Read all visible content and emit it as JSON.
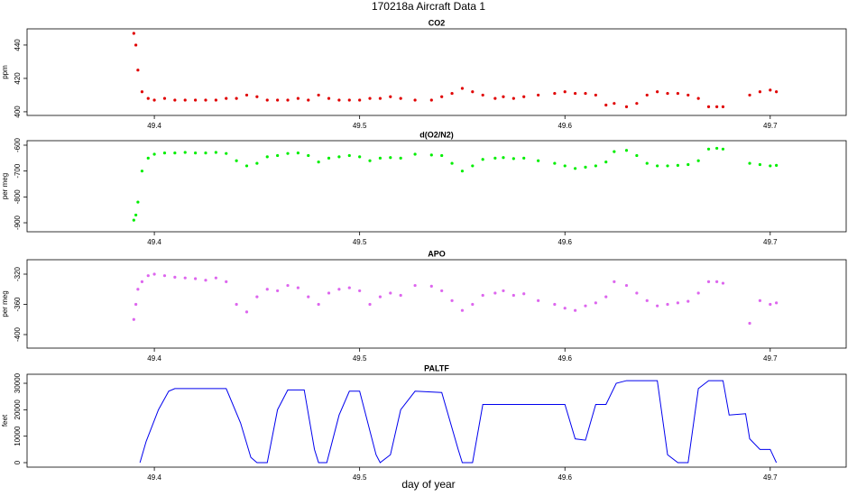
{
  "title": "170218a   Aircraft Data 1",
  "xlabel": "day of year",
  "chart_data": [
    {
      "type": "scatter",
      "title": "CO2",
      "ylabel": "ppm",
      "x": [
        49.39,
        49.391,
        49.392,
        49.394,
        49.397,
        49.4,
        49.405,
        49.41,
        49.415,
        49.42,
        49.425,
        49.43,
        49.435,
        49.44,
        49.445,
        49.45,
        49.455,
        49.46,
        49.465,
        49.47,
        49.475,
        49.48,
        49.485,
        49.49,
        49.495,
        49.5,
        49.505,
        49.51,
        49.515,
        49.52,
        49.527,
        49.535,
        49.54,
        49.545,
        49.55,
        49.555,
        49.56,
        49.566,
        49.57,
        49.575,
        49.58,
        49.587,
        49.595,
        49.6,
        49.605,
        49.61,
        49.615,
        49.62,
        49.624,
        49.63,
        49.635,
        49.64,
        49.645,
        49.65,
        49.655,
        49.66,
        49.665,
        49.67,
        49.674,
        49.677,
        49.69,
        49.695,
        49.7,
        49.703
      ],
      "series": [
        {
          "color": "#e00000",
          "values": [
            447,
            440,
            425,
            412,
            408,
            407,
            408,
            407,
            407,
            407,
            407,
            407,
            408,
            408,
            410,
            409,
            407,
            407,
            407,
            408,
            407,
            410,
            408,
            407,
            407,
            407,
            408,
            408,
            409,
            408,
            407,
            407,
            409,
            411,
            414,
            412,
            410,
            408,
            409,
            408,
            409,
            410,
            411,
            412,
            411,
            411,
            410,
            404,
            405,
            403,
            405,
            410,
            412,
            411,
            411,
            410,
            408,
            403,
            403,
            403,
            410,
            412,
            413,
            412
          ]
        }
      ],
      "xlim": [
        49.338,
        49.737
      ],
      "ylim": [
        397.8,
        449.7
      ],
      "xticks": [
        49.4,
        49.5,
        49.6,
        49.7
      ],
      "yticks": [
        400,
        420,
        440
      ]
    },
    {
      "type": "scatter",
      "title": "d(O2/N2)",
      "ylabel": "per meg",
      "x": [
        49.39,
        49.391,
        49.392,
        49.394,
        49.397,
        49.4,
        49.405,
        49.41,
        49.415,
        49.42,
        49.425,
        49.43,
        49.435,
        49.44,
        49.445,
        49.45,
        49.455,
        49.46,
        49.465,
        49.47,
        49.475,
        49.48,
        49.485,
        49.49,
        49.495,
        49.5,
        49.505,
        49.51,
        49.515,
        49.52,
        49.527,
        49.535,
        49.54,
        49.545,
        49.55,
        49.555,
        49.56,
        49.566,
        49.57,
        49.575,
        49.58,
        49.587,
        49.595,
        49.6,
        49.605,
        49.61,
        49.615,
        49.62,
        49.624,
        49.63,
        49.635,
        49.64,
        49.645,
        49.65,
        49.655,
        49.66,
        49.665,
        49.67,
        49.674,
        49.677,
        49.69,
        49.695,
        49.7,
        49.703
      ],
      "series": [
        {
          "color": "#00ee00",
          "values": [
            -890,
            -870,
            -820,
            -700,
            -650,
            -635,
            -630,
            -630,
            -628,
            -630,
            -630,
            -628,
            -632,
            -660,
            -680,
            -670,
            -645,
            -640,
            -632,
            -630,
            -640,
            -665,
            -650,
            -645,
            -640,
            -645,
            -660,
            -650,
            -648,
            -650,
            -635,
            -638,
            -640,
            -670,
            -700,
            -680,
            -655,
            -650,
            -648,
            -652,
            -650,
            -660,
            -670,
            -680,
            -690,
            -685,
            -680,
            -665,
            -625,
            -620,
            -640,
            -670,
            -680,
            -680,
            -678,
            -675,
            -660,
            -615,
            -612,
            -615,
            -670,
            -675,
            -680,
            -678
          ]
        }
      ],
      "xlim": [
        49.338,
        49.737
      ],
      "ylim": [
        -934.8,
        -582.6
      ],
      "xticks": [
        49.4,
        49.5,
        49.6,
        49.7
      ],
      "yticks": [
        -900,
        -800,
        -700,
        -600
      ]
    },
    {
      "type": "scatter",
      "title": "APO",
      "ylabel": "per meg",
      "x": [
        49.39,
        49.391,
        49.392,
        49.394,
        49.397,
        49.4,
        49.405,
        49.41,
        49.415,
        49.42,
        49.425,
        49.43,
        49.435,
        49.44,
        49.445,
        49.45,
        49.455,
        49.46,
        49.465,
        49.47,
        49.475,
        49.48,
        49.485,
        49.49,
        49.495,
        49.5,
        49.505,
        49.51,
        49.515,
        49.52,
        49.527,
        49.535,
        49.54,
        49.545,
        49.55,
        49.555,
        49.56,
        49.566,
        49.57,
        49.575,
        49.58,
        49.587,
        49.595,
        49.6,
        49.605,
        49.61,
        49.615,
        49.62,
        49.624,
        49.63,
        49.635,
        49.64,
        49.645,
        49.65,
        49.655,
        49.66,
        49.665,
        49.67,
        49.674,
        49.677,
        49.69,
        49.695,
        49.7,
        49.703
      ],
      "series": [
        {
          "color": "#dd66ee",
          "values": [
            -380,
            -360,
            -340,
            -330,
            -322,
            -320,
            -322,
            -324,
            -325,
            -326,
            -328,
            -325,
            -330,
            -360,
            -370,
            -350,
            -340,
            -342,
            -335,
            -338,
            -350,
            -360,
            -345,
            -340,
            -338,
            -342,
            -360,
            -350,
            -345,
            -348,
            -335,
            -336,
            -342,
            -355,
            -368,
            -360,
            -348,
            -345,
            -342,
            -348,
            -346,
            -355,
            -360,
            -365,
            -368,
            -362,
            -358,
            -350,
            -330,
            -335,
            -345,
            -355,
            -362,
            -360,
            -358,
            -356,
            -345,
            -330,
            -330,
            -332,
            -385,
            -355,
            -360,
            -358
          ]
        }
      ],
      "xlim": [
        49.338,
        49.737
      ],
      "ylim": [
        -417.9,
        -300.9
      ],
      "xticks": [
        49.4,
        49.5,
        49.6,
        49.7
      ],
      "yticks": [
        -400,
        -360,
        -320
      ]
    },
    {
      "type": "line",
      "title": "PALTF",
      "ylabel": "feet",
      "x": [
        49.393,
        49.396,
        49.398,
        49.402,
        49.407,
        49.41,
        49.435,
        49.442,
        49.447,
        49.45,
        49.455,
        49.46,
        49.465,
        49.473,
        49.478,
        49.48,
        49.484,
        49.49,
        49.495,
        49.5,
        49.508,
        49.51,
        49.515,
        49.52,
        49.527,
        49.54,
        49.548,
        49.55,
        49.555,
        49.56,
        49.6,
        49.605,
        49.61,
        49.615,
        49.62,
        49.625,
        49.63,
        49.645,
        49.65,
        49.655,
        49.66,
        49.665,
        49.67,
        49.677,
        49.68,
        49.688,
        49.69,
        49.695,
        49.7,
        49.703
      ],
      "series": [
        {
          "color": "#0000ee",
          "values": [
            0,
            8000,
            12000,
            20000,
            27000,
            28000,
            28000,
            15000,
            2000,
            0,
            0,
            20000,
            27500,
            27500,
            5000,
            0,
            0,
            18000,
            27000,
            27000,
            3000,
            0,
            3000,
            20000,
            27000,
            26500,
            5000,
            0,
            0,
            22000,
            22000,
            9000,
            8500,
            22000,
            22000,
            30000,
            31000,
            31000,
            3000,
            0,
            0,
            28000,
            31000,
            31000,
            18000,
            18500,
            9000,
            5000,
            5000,
            0
          ]
        }
      ],
      "xlim": [
        49.338,
        49.737
      ],
      "ylim": [
        -1700,
        33413
      ],
      "xticks": [
        49.4,
        49.5,
        49.6,
        49.7
      ],
      "yticks": [
        0,
        10000,
        20000,
        30000
      ]
    }
  ]
}
